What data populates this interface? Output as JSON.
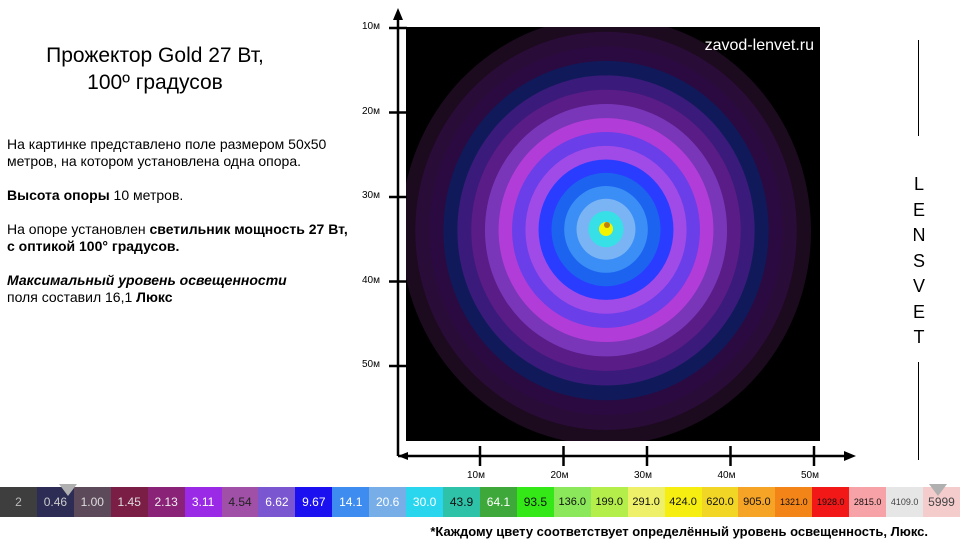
{
  "title_line1": "Прожектор Gold 27 Вт,",
  "title_line2": "100º градусов",
  "description": {
    "p1": "На картинке представлено поле размером 50х50 метров, на котором установлена  одна опора.",
    "height_label": "Высота опоры",
    "height_value": " 10 метров.",
    "luminaire_prefix": "На опоре установлен ",
    "luminaire_bold": "светильник мощность 27 Вт, с оптикой 100° градусов.",
    "max_label": "Максимальный уровень освещенности",
    "max_text": "поля  составил 16,1 ",
    "max_unit": "Люкс"
  },
  "watermark": "zavod-lenvet.ru",
  "y_ticks": [
    "10м",
    "20м",
    "30м",
    "40м",
    "50м"
  ],
  "x_ticks": [
    "10м",
    "20м",
    "30м",
    "40м",
    "50м"
  ],
  "brand_letters": [
    "L",
    "E",
    "N",
    "S",
    "V",
    "E",
    "T"
  ],
  "chart_data": {
    "type": "heatmap",
    "xlabel": "",
    "ylabel": "",
    "x_ticks": [
      "10м",
      "20м",
      "30м",
      "40м",
      "50м"
    ],
    "y_ticks": [
      "10м",
      "20м",
      "30м",
      "40м",
      "50м"
    ],
    "max_value": 16.1,
    "unit": "Люкс",
    "rings": [
      {
        "color": "#1c0a1e"
      },
      {
        "color": "#2a0c38"
      },
      {
        "color": "#2a0a40"
      },
      {
        "color": "#101a5a"
      },
      {
        "color": "#3a1a7a"
      },
      {
        "color": "#5a1c86"
      },
      {
        "color": "#7a36b8"
      },
      {
        "color": "#b23cd8"
      },
      {
        "color": "#6a3ee8"
      },
      {
        "color": "#a04ae8"
      },
      {
        "color": "#2a3cff"
      },
      {
        "color": "#1c64f0"
      },
      {
        "color": "#3a8ef6"
      },
      {
        "color": "#7ab4f4"
      },
      {
        "color": "#36e0e6"
      },
      {
        "color": "#f4f400"
      }
    ]
  },
  "scale": [
    {
      "label": "2",
      "color": "#3e3e3e",
      "text_color": "#bbbbbb"
    },
    {
      "label": "0.46",
      "color": "#2c2c54",
      "text_color": "#cccccc"
    },
    {
      "label": "1.00",
      "color": "#5c4a5a",
      "text_color": "#dddddd"
    },
    {
      "label": "1.45",
      "color": "#7a1e46",
      "text_color": "#dddddd"
    },
    {
      "label": "2.13",
      "color": "#8a2278",
      "text_color": "#eeeeee"
    },
    {
      "label": "3.11",
      "color": "#9a2ae6",
      "text_color": "#ffffff"
    },
    {
      "label": "4.54",
      "color": "#a050a6",
      "text_color": "#222222"
    },
    {
      "label": "6.62",
      "color": "#7a56d0",
      "text_color": "#ffffff"
    },
    {
      "label": "9.67",
      "color": "#1a10f0",
      "text_color": "#ffffff"
    },
    {
      "label": "14.1",
      "color": "#3e8cf0",
      "text_color": "#ffffff"
    },
    {
      "label": "20.6",
      "color": "#78aee8",
      "text_color": "#ffffff"
    },
    {
      "label": "30.0",
      "color": "#2ad6ee",
      "text_color": "#ffffff"
    },
    {
      "label": "43.9",
      "color": "#2ec2a8",
      "text_color": "#111111"
    },
    {
      "label": "64.1",
      "color": "#3ea83a",
      "text_color": "#ffffff"
    },
    {
      "label": "93.5",
      "color": "#34e818",
      "text_color": "#111111"
    },
    {
      "label": "136.0",
      "color": "#8ae85a",
      "text_color": "#111111"
    },
    {
      "label": "199.0",
      "color": "#b4ee4a",
      "text_color": "#111111"
    },
    {
      "label": "291.0",
      "color": "#eef06a",
      "text_color": "#111111"
    },
    {
      "label": "424.0",
      "color": "#f6ee10",
      "text_color": "#111111"
    },
    {
      "label": "620.0",
      "color": "#f2d626",
      "text_color": "#111111"
    },
    {
      "label": "905.0",
      "color": "#f6a426",
      "text_color": "#111111"
    },
    {
      "label": "1321.0",
      "color": "#f28418",
      "text_color": "#111111"
    },
    {
      "label": "1928.0",
      "color": "#f21818",
      "text_color": "#111111"
    },
    {
      "label": "2815.0",
      "color": "#f6a2a6",
      "text_color": "#111111"
    },
    {
      "label": "4109.0",
      "color": "#e6e6e6",
      "text_color": "#444444"
    },
    {
      "label": "5999",
      "color": "#f4cccc",
      "text_color": "#444444"
    }
  ],
  "footnote": "*Каждому цвету соответствует  определённый уровень освещенность, Люкс."
}
